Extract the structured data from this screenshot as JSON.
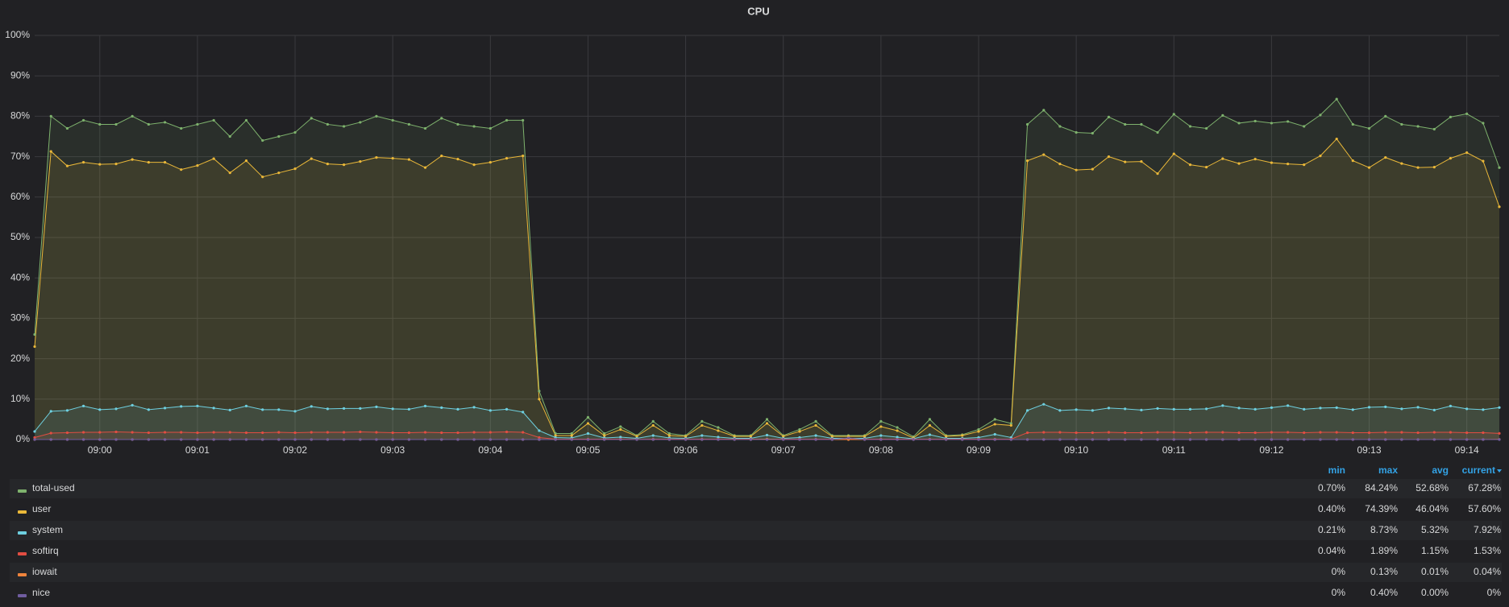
{
  "chart_data": {
    "type": "line",
    "title": "CPU",
    "x": [
      539.333,
      539.5,
      539.667,
      539.833,
      540,
      540.167,
      540.333,
      540.5,
      540.667,
      540.833,
      541,
      541.167,
      541.333,
      541.5,
      541.667,
      541.833,
      542,
      542.167,
      542.333,
      542.5,
      542.667,
      542.833,
      543,
      543.167,
      543.333,
      543.5,
      543.667,
      543.833,
      544,
      544.167,
      544.333,
      544.5,
      544.667,
      544.833,
      545,
      545.167,
      545.333,
      545.5,
      545.667,
      545.833,
      546,
      546.167,
      546.333,
      546.5,
      546.667,
      546.833,
      547,
      547.167,
      547.333,
      547.5,
      547.667,
      547.833,
      548,
      548.167,
      548.333,
      548.5,
      548.667,
      548.833,
      549,
      549.167,
      549.333,
      549.5,
      549.667,
      549.833,
      550,
      550.167,
      550.333,
      550.5,
      550.667,
      550.833,
      551,
      551.167,
      551.333,
      551.5,
      551.667,
      551.833,
      552,
      552.167,
      552.333,
      552.5,
      552.667,
      552.833,
      553,
      553.167,
      553.333,
      553.5,
      553.667,
      553.833,
      554,
      554.167,
      554.333
    ],
    "xlim": [
      539.333,
      554.333
    ],
    "xticks": [
      {
        "value": 540,
        "label": "09:00"
      },
      {
        "value": 541,
        "label": "09:01"
      },
      {
        "value": 542,
        "label": "09:02"
      },
      {
        "value": 543,
        "label": "09:03"
      },
      {
        "value": 544,
        "label": "09:04"
      },
      {
        "value": 545,
        "label": "09:05"
      },
      {
        "value": 546,
        "label": "09:06"
      },
      {
        "value": 547,
        "label": "09:07"
      },
      {
        "value": 548,
        "label": "09:08"
      },
      {
        "value": 549,
        "label": "09:09"
      },
      {
        "value": 550,
        "label": "09:10"
      },
      {
        "value": 551,
        "label": "09:11"
      },
      {
        "value": 552,
        "label": "09:12"
      },
      {
        "value": 553,
        "label": "09:13"
      },
      {
        "value": 554,
        "label": "09:14"
      }
    ],
    "ylim": [
      0,
      100
    ],
    "yticks": [
      {
        "value": 0,
        "label": "0%"
      },
      {
        "value": 10,
        "label": "10%"
      },
      {
        "value": 20,
        "label": "20%"
      },
      {
        "value": 30,
        "label": "30%"
      },
      {
        "value": 40,
        "label": "40%"
      },
      {
        "value": 50,
        "label": "50%"
      },
      {
        "value": 60,
        "label": "60%"
      },
      {
        "value": 70,
        "label": "70%"
      },
      {
        "value": 80,
        "label": "80%"
      },
      {
        "value": 90,
        "label": "90%"
      },
      {
        "value": 100,
        "label": "100%"
      }
    ],
    "grid": true,
    "legend_columns": [
      "min",
      "max",
      "avg",
      "current"
    ],
    "series": [
      {
        "name": "total-used",
        "color": "#7eb26d",
        "legend": [
          "0.70%",
          "84.24%",
          "52.68%",
          "67.28%"
        ],
        "values": [
          26,
          80,
          77,
          79,
          78,
          78,
          80,
          78,
          78.5,
          77,
          78,
          79,
          75,
          79,
          74,
          75,
          76,
          79.5,
          78,
          77.5,
          78.5,
          80,
          79,
          78,
          77,
          79.5,
          78,
          77.5,
          77,
          79,
          79,
          12,
          1.5,
          1.5,
          5.5,
          1.5,
          3.2,
          1,
          4.5,
          1.5,
          1,
          4.5,
          3,
          1,
          1,
          5,
          1,
          2.5,
          4.5,
          1,
          1,
          1,
          4.5,
          3,
          0.7,
          5,
          1,
          1.2,
          2.5,
          5,
          4,
          78,
          81.5,
          77.5,
          76,
          75.8,
          79.8,
          78,
          78,
          76,
          80.5,
          77.5,
          77,
          80.2,
          78.3,
          78.8,
          78.3,
          78.7,
          77.5,
          80.3,
          84.24,
          78,
          77,
          80,
          78,
          77.5,
          76.8,
          79.8,
          80.6,
          78.3,
          67.28
        ]
      },
      {
        "name": "user",
        "color": "#eab839",
        "legend": [
          "0.40%",
          "74.39%",
          "46.04%",
          "57.60%"
        ],
        "values": [
          23,
          71.3,
          67.7,
          68.6,
          68.1,
          68.2,
          69.3,
          68.6,
          68.6,
          66.8,
          67.8,
          69.5,
          66,
          69,
          65,
          66,
          67,
          69.5,
          68.2,
          68,
          68.8,
          69.8,
          69.6,
          69.3,
          67.3,
          70.2,
          69.4,
          68,
          68.6,
          69.6,
          70.2,
          10,
          1,
          1,
          4,
          1,
          2.5,
          0.8,
          3.5,
          1,
          0.8,
          3.5,
          2.2,
          0.8,
          0.8,
          4,
          0.8,
          2,
          3.5,
          0.8,
          0.8,
          0.8,
          3.2,
          2.2,
          0.4,
          3.5,
          0.8,
          1,
          2,
          3.8,
          3.5,
          69,
          70.5,
          68.2,
          66.7,
          66.9,
          70,
          68.7,
          68.8,
          65.8,
          70.7,
          68,
          67.4,
          69.5,
          68.3,
          69.4,
          68.5,
          68.2,
          68,
          70.2,
          74.39,
          69,
          67.3,
          69.8,
          68.3,
          67.3,
          67.4,
          69.6,
          71,
          68.9,
          57.6
        ]
      },
      {
        "name": "system",
        "color": "#6ed0e0",
        "legend": [
          "0.21%",
          "8.73%",
          "5.32%",
          "7.92%"
        ],
        "values": [
          2,
          7,
          7.2,
          8.3,
          7.4,
          7.6,
          8.5,
          7.4,
          7.8,
          8.2,
          8.3,
          7.8,
          7.3,
          8.3,
          7.4,
          7.4,
          7,
          8.2,
          7.6,
          7.7,
          7.7,
          8.1,
          7.6,
          7.5,
          8.3,
          7.9,
          7.5,
          8,
          7.2,
          7.5,
          6.8,
          2.2,
          0.5,
          0.4,
          1.5,
          0.4,
          0.6,
          0.3,
          1,
          0.4,
          0.3,
          1,
          0.6,
          0.3,
          0.3,
          1.1,
          0.3,
          0.5,
          1,
          0.3,
          0.3,
          0.3,
          1,
          0.6,
          0.21,
          1.2,
          0.3,
          0.3,
          0.5,
          1.3,
          0.5,
          7.2,
          8.73,
          7.2,
          7.4,
          7.2,
          7.8,
          7.6,
          7.3,
          7.7,
          7.5,
          7.5,
          7.6,
          8.4,
          7.8,
          7.5,
          7.9,
          8.4,
          7.5,
          7.8,
          7.9,
          7.4,
          8,
          8.1,
          7.6,
          8,
          7.3,
          8.3,
          7.6,
          7.4,
          7.92
        ]
      },
      {
        "name": "softirq",
        "color": "#e24d42",
        "legend": [
          "0.04%",
          "1.89%",
          "1.15%",
          "1.53%"
        ],
        "values": [
          0.5,
          1.6,
          1.7,
          1.8,
          1.8,
          1.9,
          1.8,
          1.7,
          1.8,
          1.8,
          1.7,
          1.8,
          1.8,
          1.7,
          1.7,
          1.8,
          1.7,
          1.8,
          1.8,
          1.8,
          1.9,
          1.8,
          1.7,
          1.7,
          1.8,
          1.7,
          1.7,
          1.8,
          1.8,
          1.89,
          1.8,
          0.5,
          0.1,
          0.1,
          0.1,
          0.1,
          0.1,
          0.04,
          0.1,
          0.1,
          0.1,
          0.1,
          0.1,
          0.1,
          0.1,
          0.1,
          0.1,
          0.1,
          0.1,
          0.1,
          0.1,
          0.1,
          0.1,
          0.1,
          0.1,
          0.1,
          0.1,
          0.1,
          0.1,
          0.1,
          0.1,
          1.7,
          1.8,
          1.8,
          1.7,
          1.7,
          1.8,
          1.7,
          1.7,
          1.8,
          1.8,
          1.7,
          1.8,
          1.8,
          1.7,
          1.7,
          1.8,
          1.8,
          1.7,
          1.8,
          1.8,
          1.7,
          1.7,
          1.8,
          1.8,
          1.7,
          1.8,
          1.8,
          1.7,
          1.7,
          1.53
        ]
      },
      {
        "name": "iowait",
        "color": "#ef843c",
        "legend": [
          "0%",
          "0.13%",
          "0.01%",
          "0.04%"
        ],
        "values": [
          0,
          0,
          0,
          0,
          0,
          0,
          0,
          0,
          0,
          0,
          0,
          0,
          0,
          0,
          0,
          0,
          0,
          0,
          0,
          0,
          0,
          0,
          0,
          0,
          0,
          0,
          0,
          0,
          0,
          0,
          0,
          0,
          0,
          0,
          0,
          0,
          0,
          0,
          0,
          0,
          0,
          0,
          0,
          0,
          0,
          0.13,
          0,
          0,
          0,
          0,
          0,
          0,
          0,
          0,
          0,
          0,
          0,
          0,
          0,
          0,
          0,
          0,
          0,
          0,
          0,
          0,
          0,
          0,
          0,
          0,
          0,
          0,
          0,
          0,
          0,
          0,
          0,
          0,
          0,
          0,
          0,
          0,
          0,
          0,
          0,
          0,
          0,
          0,
          0,
          0,
          0.04
        ]
      },
      {
        "name": "nice",
        "color": "#705da0",
        "legend": [
          "0%",
          "0.40%",
          "0.00%",
          "0%"
        ],
        "values": [
          0,
          0,
          0,
          0,
          0,
          0,
          0,
          0,
          0,
          0,
          0,
          0,
          0,
          0,
          0,
          0,
          0,
          0,
          0,
          0,
          0,
          0,
          0,
          0,
          0,
          0,
          0,
          0,
          0,
          0,
          0,
          0,
          0,
          0,
          0,
          0,
          0,
          0,
          0,
          0,
          0,
          0,
          0,
          0,
          0,
          0,
          0,
          0,
          0,
          0,
          0.4,
          0,
          0,
          0,
          0,
          0,
          0,
          0,
          0,
          0,
          0,
          0,
          0,
          0,
          0,
          0,
          0,
          0,
          0,
          0,
          0,
          0,
          0,
          0,
          0,
          0,
          0,
          0,
          0,
          0,
          0,
          0,
          0,
          0,
          0,
          0,
          0,
          0,
          0,
          0,
          0
        ]
      }
    ]
  }
}
